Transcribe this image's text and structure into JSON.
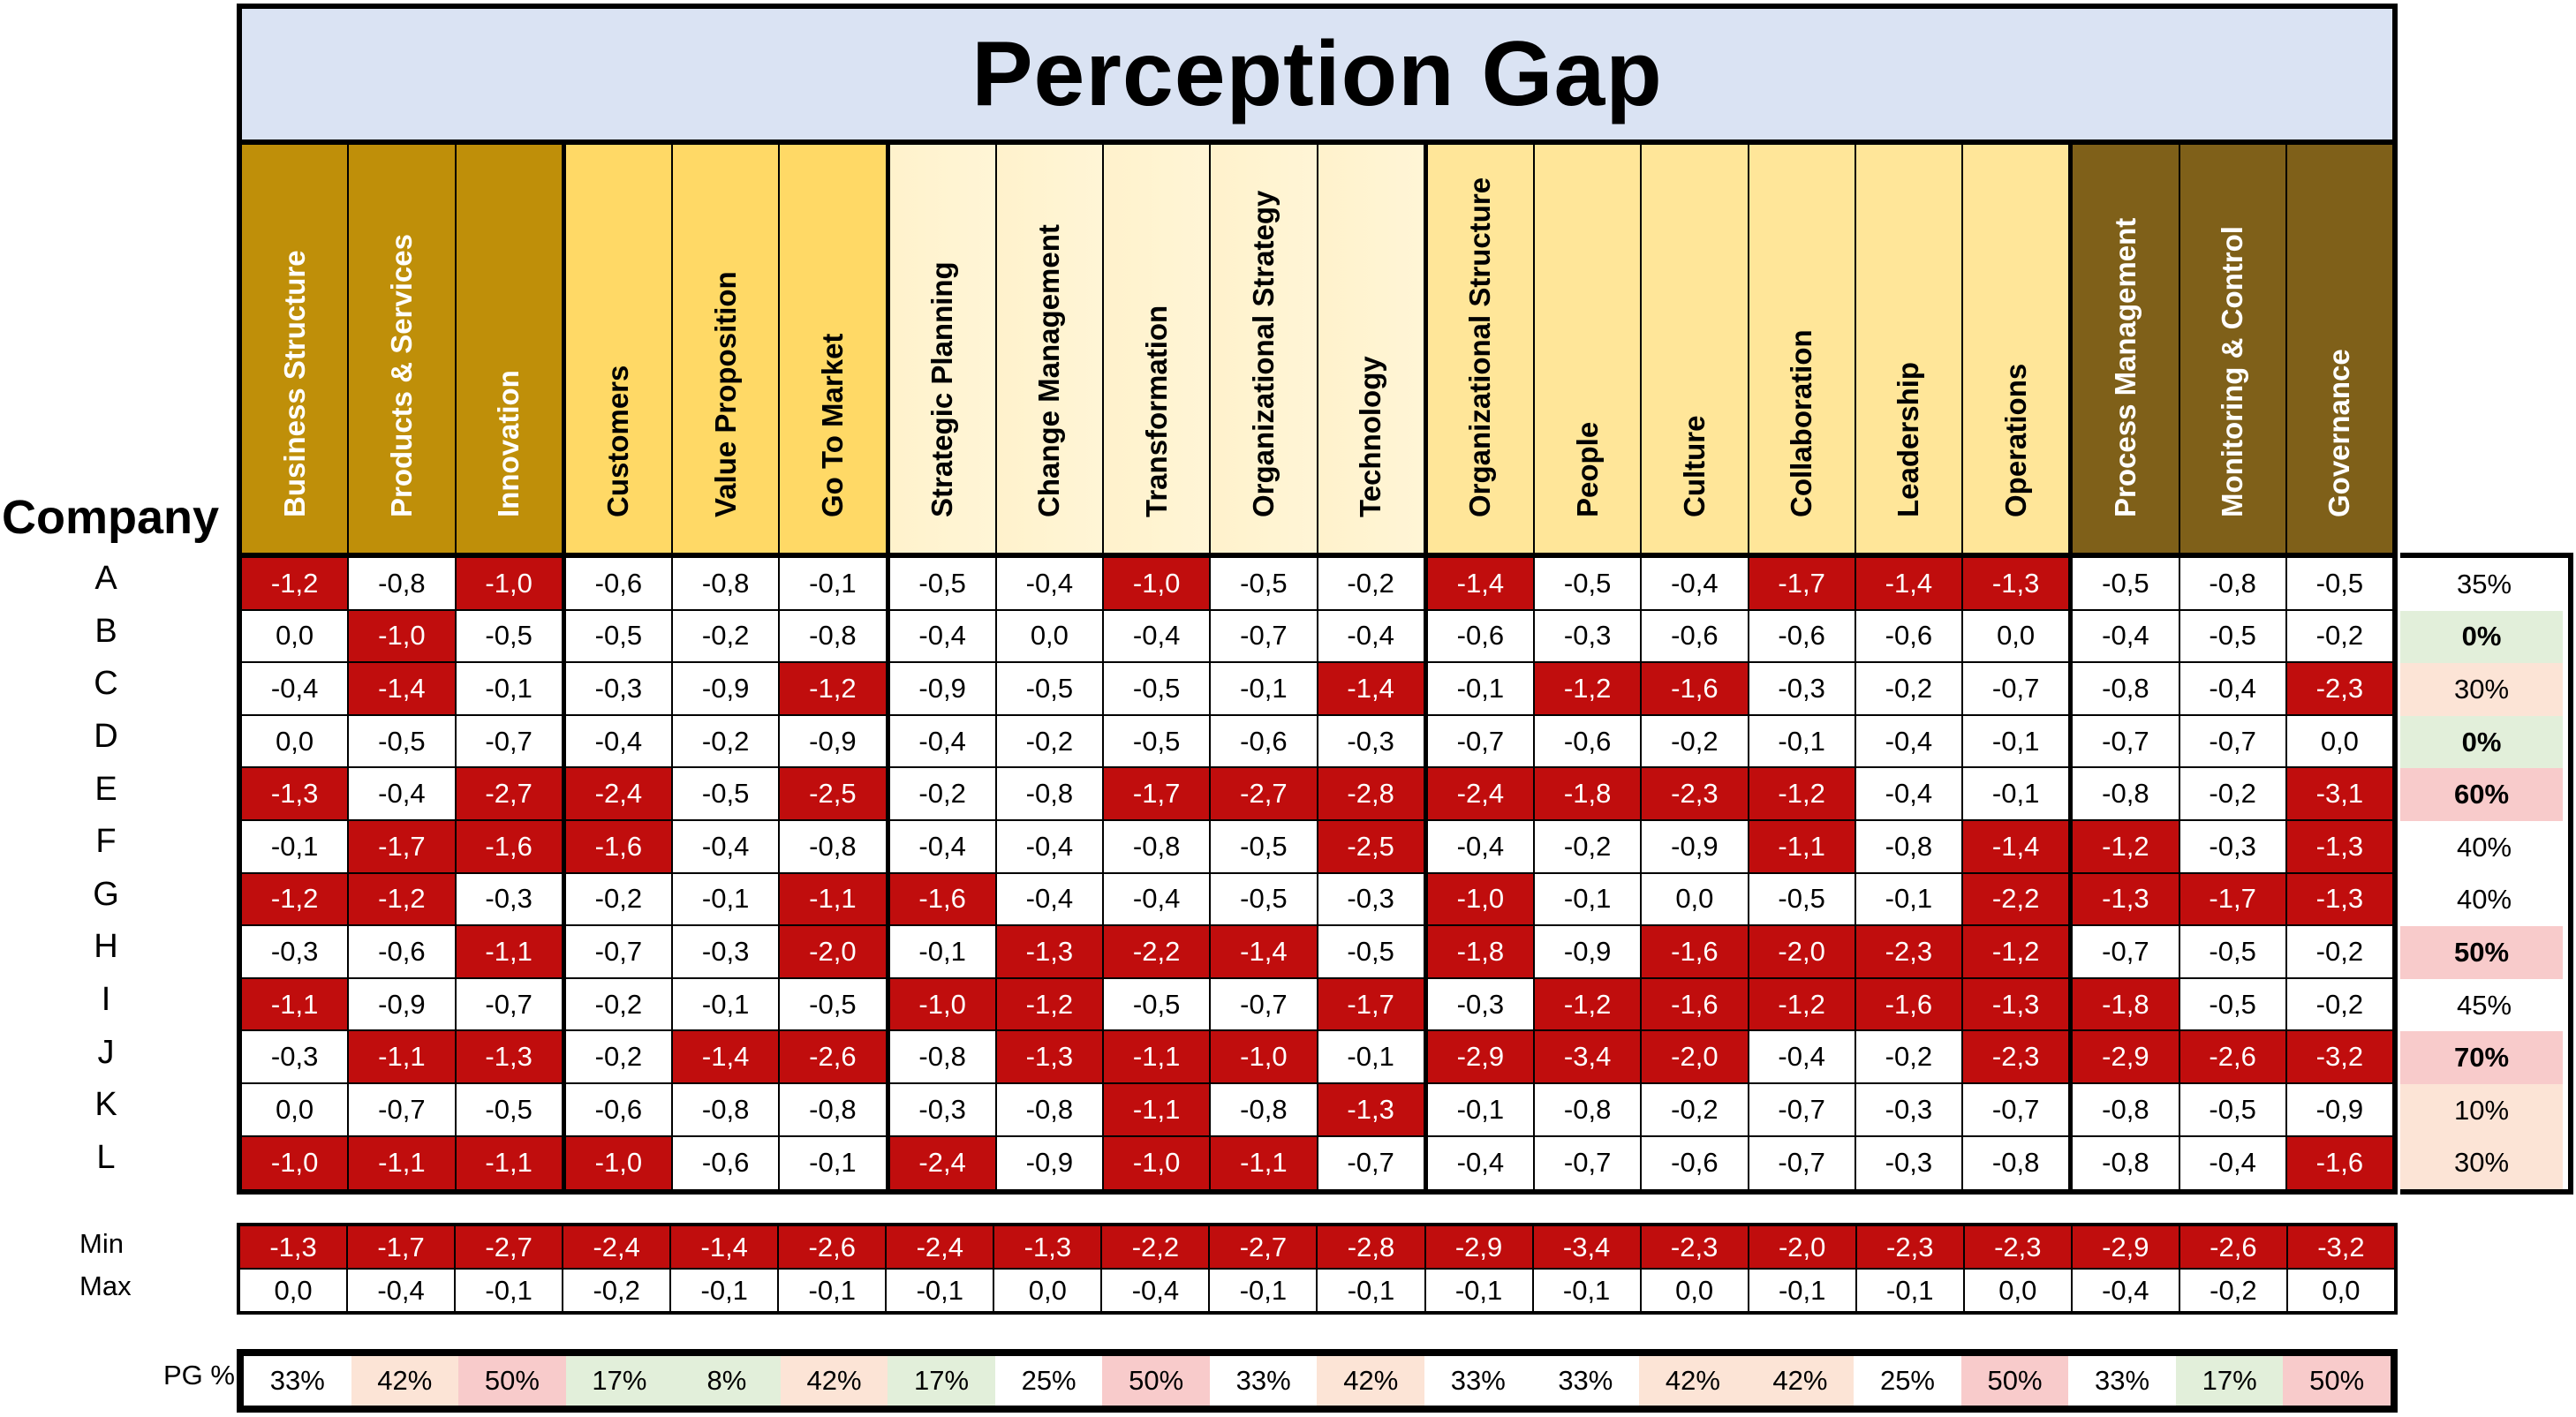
{
  "title": "Perception Gap",
  "row_header_label": "Company",
  "colors": {
    "title_bg": "#dae3f3",
    "highlight_red": "#c00d0d",
    "group1_header": "#bf8f09",
    "group2_header": "#ffd966",
    "group3_header": "#fff2cc",
    "group4_header": "#ffe699",
    "group5_header": "#7f6019",
    "pct_green": "#e2efda",
    "pct_light_red": "#fce4d6",
    "pct_red": "#f8cbcb"
  },
  "columns": [
    {
      "label": "Business Structure",
      "group": 1
    },
    {
      "label": "Products & Services",
      "group": 1
    },
    {
      "label": "Innovation",
      "group": 1
    },
    {
      "label": "Customers",
      "group": 2
    },
    {
      "label": "Value Proposition",
      "group": 2
    },
    {
      "label": "Go To Market",
      "group": 2
    },
    {
      "label": "Strategic Planning",
      "group": 3
    },
    {
      "label": "Change Management",
      "group": 3
    },
    {
      "label": "Transformation",
      "group": 3
    },
    {
      "label": "Organizational Strategy",
      "group": 3
    },
    {
      "label": "Technology",
      "group": 3
    },
    {
      "label": "Organizational Structure",
      "group": 4
    },
    {
      "label": "People",
      "group": 4
    },
    {
      "label": "Culture",
      "group": 4
    },
    {
      "label": "Collaboration",
      "group": 4
    },
    {
      "label": "Leadership",
      "group": 4
    },
    {
      "label": "Operations",
      "group": 4
    },
    {
      "label": "Process Management",
      "group": 5
    },
    {
      "label": "Monitoring & Control",
      "group": 5
    },
    {
      "label": "Governance",
      "group": 5
    }
  ],
  "rows": [
    {
      "company": "A",
      "values": [
        "-1,2",
        "-0,8",
        "-1,0",
        "-0,6",
        "-0,8",
        "-0,1",
        "-0,5",
        "-0,4",
        "-1,0",
        "-0,5",
        "-0,2",
        "-1,4",
        "-0,5",
        "-0,4",
        "-1,7",
        "-1,4",
        "-1,3",
        "-0,5",
        "-0,8",
        "-0,5"
      ],
      "pct": "35%",
      "pct_style": "none",
      "pct_bold": false
    },
    {
      "company": "B",
      "values": [
        "0,0",
        "-1,0",
        "-0,5",
        "-0,5",
        "-0,2",
        "-0,8",
        "-0,4",
        "0,0",
        "-0,4",
        "-0,7",
        "-0,4",
        "-0,6",
        "-0,3",
        "-0,6",
        "-0,6",
        "-0,6",
        "0,0",
        "-0,4",
        "-0,5",
        "-0,2"
      ],
      "pct": "0%",
      "pct_style": "green",
      "pct_bold": true
    },
    {
      "company": "C",
      "values": [
        "-0,4",
        "-1,4",
        "-0,1",
        "-0,3",
        "-0,9",
        "-1,2",
        "-0,9",
        "-0,5",
        "-0,5",
        "-0,1",
        "-1,4",
        "-0,1",
        "-1,2",
        "-1,6",
        "-0,3",
        "-0,2",
        "-0,7",
        "-0,8",
        "-0,4",
        "-2,3"
      ],
      "pct": "30%",
      "pct_style": "light-red",
      "pct_bold": false
    },
    {
      "company": "D",
      "values": [
        "0,0",
        "-0,5",
        "-0,7",
        "-0,4",
        "-0,2",
        "-0,9",
        "-0,4",
        "-0,2",
        "-0,5",
        "-0,6",
        "-0,3",
        "-0,7",
        "-0,6",
        "-0,2",
        "-0,1",
        "-0,4",
        "-0,1",
        "-0,7",
        "-0,7",
        "0,0"
      ],
      "pct": "0%",
      "pct_style": "green",
      "pct_bold": true
    },
    {
      "company": "E",
      "values": [
        "-1,3",
        "-0,4",
        "-2,7",
        "-2,4",
        "-0,5",
        "-2,5",
        "-0,2",
        "-0,8",
        "-1,7",
        "-2,7",
        "-2,8",
        "-2,4",
        "-1,8",
        "-2,3",
        "-1,2",
        "-0,4",
        "-0,1",
        "-0,8",
        "-0,2",
        "-3,1"
      ],
      "pct": "60%",
      "pct_style": "red",
      "pct_bold": true
    },
    {
      "company": "F",
      "values": [
        "-0,1",
        "-1,7",
        "-1,6",
        "-1,6",
        "-0,4",
        "-0,8",
        "-0,4",
        "-0,4",
        "-0,8",
        "-0,5",
        "-2,5",
        "-0,4",
        "-0,2",
        "-0,9",
        "-1,1",
        "-0,8",
        "-1,4",
        "-1,2",
        "-0,3",
        "-1,3"
      ],
      "pct": "40%",
      "pct_style": "none",
      "pct_bold": false
    },
    {
      "company": "G",
      "values": [
        "-1,2",
        "-1,2",
        "-0,3",
        "-0,2",
        "-0,1",
        "-1,1",
        "-1,6",
        "-0,4",
        "-0,4",
        "-0,5",
        "-0,3",
        "-1,0",
        "-0,1",
        "0,0",
        "-0,5",
        "-0,1",
        "-2,2",
        "-1,3",
        "-1,7",
        "-1,3"
      ],
      "pct": "40%",
      "pct_style": "none",
      "pct_bold": false
    },
    {
      "company": "H",
      "values": [
        "-0,3",
        "-0,6",
        "-1,1",
        "-0,7",
        "-0,3",
        "-2,0",
        "-0,1",
        "-1,3",
        "-2,2",
        "-1,4",
        "-0,5",
        "-1,8",
        "-0,9",
        "-1,6",
        "-2,0",
        "-2,3",
        "-1,2",
        "-0,7",
        "-0,5",
        "-0,2"
      ],
      "pct": "50%",
      "pct_style": "red",
      "pct_bold": true
    },
    {
      "company": "I",
      "values": [
        "-1,1",
        "-0,9",
        "-0,7",
        "-0,2",
        "-0,1",
        "-0,5",
        "-1,0",
        "-1,2",
        "-0,5",
        "-0,7",
        "-1,7",
        "-0,3",
        "-1,2",
        "-1,6",
        "-1,2",
        "-1,6",
        "-1,3",
        "-1,8",
        "-0,5",
        "-0,2"
      ],
      "pct": "45%",
      "pct_style": "none",
      "pct_bold": false
    },
    {
      "company": "J",
      "values": [
        "-0,3",
        "-1,1",
        "-1,3",
        "-0,2",
        "-1,4",
        "-2,6",
        "-0,8",
        "-1,3",
        "-1,1",
        "-1,0",
        "-0,1",
        "-2,9",
        "-3,4",
        "-2,0",
        "-0,4",
        "-0,2",
        "-2,3",
        "-2,9",
        "-2,6",
        "-3,2"
      ],
      "pct": "70%",
      "pct_style": "red",
      "pct_bold": true
    },
    {
      "company": "K",
      "values": [
        "0,0",
        "-0,7",
        "-0,5",
        "-0,6",
        "-0,8",
        "-0,8",
        "-0,3",
        "-0,8",
        "-1,1",
        "-0,8",
        "-1,3",
        "-0,1",
        "-0,8",
        "-0,2",
        "-0,7",
        "-0,3",
        "-0,7",
        "-0,8",
        "-0,5",
        "-0,9"
      ],
      "pct": "10%",
      "pct_style": "light-red",
      "pct_bold": false
    },
    {
      "company": "L",
      "values": [
        "-1,0",
        "-1,1",
        "-1,1",
        "-1,0",
        "-0,6",
        "-0,1",
        "-2,4",
        "-0,9",
        "-1,0",
        "-1,1",
        "-0,7",
        "-0,4",
        "-0,7",
        "-0,6",
        "-0,7",
        "-0,3",
        "-0,8",
        "-0,8",
        "-0,4",
        "-1,6"
      ],
      "pct": "30%",
      "pct_style": "light-red",
      "pct_bold": false
    }
  ],
  "summary": {
    "min_label": "Min",
    "max_label": "Max",
    "min": [
      "-1,3",
      "-1,7",
      "-2,7",
      "-2,4",
      "-1,4",
      "-2,6",
      "-2,4",
      "-1,3",
      "-2,2",
      "-2,7",
      "-2,8",
      "-2,9",
      "-3,4",
      "-2,3",
      "-2,0",
      "-2,3",
      "-2,3",
      "-2,9",
      "-2,6",
      "-3,2"
    ],
    "max": [
      "0,0",
      "-0,4",
      "-0,1",
      "-0,2",
      "-0,1",
      "-0,1",
      "-0,1",
      "0,0",
      "-0,4",
      "-0,1",
      "-0,1",
      "-0,1",
      "-0,1",
      "0,0",
      "-0,1",
      "-0,1",
      "0,0",
      "-0,4",
      "-0,2",
      "0,0"
    ]
  },
  "pg": {
    "label": "PG %",
    "values": [
      "33%",
      "42%",
      "50%",
      "17%",
      "8%",
      "42%",
      "17%",
      "25%",
      "50%",
      "33%",
      "42%",
      "33%",
      "33%",
      "42%",
      "42%",
      "25%",
      "50%",
      "33%",
      "17%",
      "50%"
    ],
    "styles": [
      "none",
      "light-red",
      "red",
      "green",
      "green",
      "light-red",
      "green",
      "none",
      "red",
      "none",
      "light-red",
      "none",
      "none",
      "light-red",
      "light-red",
      "none",
      "red",
      "none",
      "green",
      "red"
    ]
  },
  "chart_data": {
    "type": "heatmap",
    "title": "Perception Gap",
    "xlabel": "",
    "ylabel": "Company",
    "categories": [
      "Business Structure",
      "Products & Services",
      "Innovation",
      "Customers",
      "Value Proposition",
      "Go To Market",
      "Strategic Planning",
      "Change Management",
      "Transformation",
      "Organizational Strategy",
      "Technology",
      "Organizational Structure",
      "People",
      "Culture",
      "Collaboration",
      "Leadership",
      "Operations",
      "Process Management",
      "Monitoring & Control",
      "Governance"
    ],
    "rows": [
      "A",
      "B",
      "C",
      "D",
      "E",
      "F",
      "G",
      "H",
      "I",
      "J",
      "K",
      "L"
    ],
    "values": [
      [
        -1.2,
        -0.8,
        -1.0,
        -0.6,
        -0.8,
        -0.1,
        -0.5,
        -0.4,
        -1.0,
        -0.5,
        -0.2,
        -1.4,
        -0.5,
        -0.4,
        -1.7,
        -1.4,
        -1.3,
        -0.5,
        -0.8,
        -0.5
      ],
      [
        0.0,
        -1.0,
        -0.5,
        -0.5,
        -0.2,
        -0.8,
        -0.4,
        0.0,
        -0.4,
        -0.7,
        -0.4,
        -0.6,
        -0.3,
        -0.6,
        -0.6,
        -0.6,
        0.0,
        -0.4,
        -0.5,
        -0.2
      ],
      [
        -0.4,
        -1.4,
        -0.1,
        -0.3,
        -0.9,
        -1.2,
        -0.9,
        -0.5,
        -0.5,
        -0.1,
        -1.4,
        -0.1,
        -1.2,
        -1.6,
        -0.3,
        -0.2,
        -0.7,
        -0.8,
        -0.4,
        -2.3
      ],
      [
        0.0,
        -0.5,
        -0.7,
        -0.4,
        -0.2,
        -0.9,
        -0.4,
        -0.2,
        -0.5,
        -0.6,
        -0.3,
        -0.7,
        -0.6,
        -0.2,
        -0.1,
        -0.4,
        -0.1,
        -0.7,
        -0.7,
        0.0
      ],
      [
        -1.3,
        -0.4,
        -2.7,
        -2.4,
        -0.5,
        -2.5,
        -0.2,
        -0.8,
        -1.7,
        -2.7,
        -2.8,
        -2.4,
        -1.8,
        -2.3,
        -1.2,
        -0.4,
        -0.1,
        -0.8,
        -0.2,
        -3.1
      ],
      [
        -0.1,
        -1.7,
        -1.6,
        -1.6,
        -0.4,
        -0.8,
        -0.4,
        -0.4,
        -0.8,
        -0.5,
        -2.5,
        -0.4,
        -0.2,
        -0.9,
        -1.1,
        -0.8,
        -1.4,
        -1.2,
        -0.3,
        -1.3
      ],
      [
        -1.2,
        -1.2,
        -0.3,
        -0.2,
        -0.1,
        -1.1,
        -1.6,
        -0.4,
        -0.4,
        -0.5,
        -0.3,
        -1.0,
        -0.1,
        0.0,
        -0.5,
        -0.1,
        -2.2,
        -1.3,
        -1.7,
        -1.3
      ],
      [
        -0.3,
        -0.6,
        -1.1,
        -0.7,
        -0.3,
        -2.0,
        -0.1,
        -1.3,
        -2.2,
        -1.4,
        -0.5,
        -1.8,
        -0.9,
        -1.6,
        -2.0,
        -2.3,
        -1.2,
        -0.7,
        -0.5,
        -0.2
      ],
      [
        -1.1,
        -0.9,
        -0.7,
        -0.2,
        -0.1,
        -0.5,
        -1.0,
        -1.2,
        -0.5,
        -0.7,
        -1.7,
        -0.3,
        -1.2,
        -1.6,
        -1.2,
        -1.6,
        -1.3,
        -1.8,
        -0.5,
        -0.2
      ],
      [
        -0.3,
        -1.1,
        -1.3,
        -0.2,
        -1.4,
        -2.6,
        -0.8,
        -1.3,
        -1.1,
        -1.0,
        -0.1,
        -2.9,
        -3.4,
        -2.0,
        -0.4,
        -0.2,
        -2.3,
        -2.9,
        -2.6,
        -3.2
      ],
      [
        0.0,
        -0.7,
        -0.5,
        -0.6,
        -0.8,
        -0.8,
        -0.3,
        -0.8,
        -1.1,
        -0.8,
        -1.3,
        -0.1,
        -0.8,
        -0.2,
        -0.7,
        -0.3,
        -0.7,
        -0.8,
        -0.5,
        -0.9
      ],
      [
        -1.0,
        -1.1,
        -1.1,
        -1.0,
        -0.6,
        -0.1,
        -2.4,
        -0.9,
        -1.0,
        -1.1,
        -0.7,
        -0.4,
        -0.7,
        -0.6,
        -0.7,
        -0.3,
        -0.8,
        -0.8,
        -0.4,
        -1.6
      ]
    ],
    "highlight_threshold": "value <= -1.0 shown in red",
    "row_pct": {
      "A": 35,
      "B": 0,
      "C": 30,
      "D": 0,
      "E": 60,
      "F": 40,
      "G": 40,
      "H": 50,
      "I": 45,
      "J": 70,
      "K": 10,
      "L": 30
    },
    "min": [
      -1.3,
      -1.7,
      -2.7,
      -2.4,
      -1.4,
      -2.6,
      -2.4,
      -1.3,
      -2.2,
      -2.7,
      -2.8,
      -2.9,
      -3.4,
      -2.3,
      -2.0,
      -2.3,
      -2.3,
      -2.9,
      -2.6,
      -3.2
    ],
    "max": [
      0.0,
      -0.4,
      -0.1,
      -0.2,
      -0.1,
      -0.1,
      -0.1,
      0.0,
      -0.4,
      -0.1,
      -0.1,
      -0.1,
      -0.1,
      0.0,
      -0.1,
      -0.1,
      0.0,
      -0.4,
      -0.2,
      0.0
    ],
    "pg_pct": [
      33,
      42,
      50,
      17,
      8,
      42,
      17,
      25,
      50,
      33,
      42,
      33,
      33,
      42,
      42,
      25,
      50,
      33,
      17,
      50
    ]
  }
}
